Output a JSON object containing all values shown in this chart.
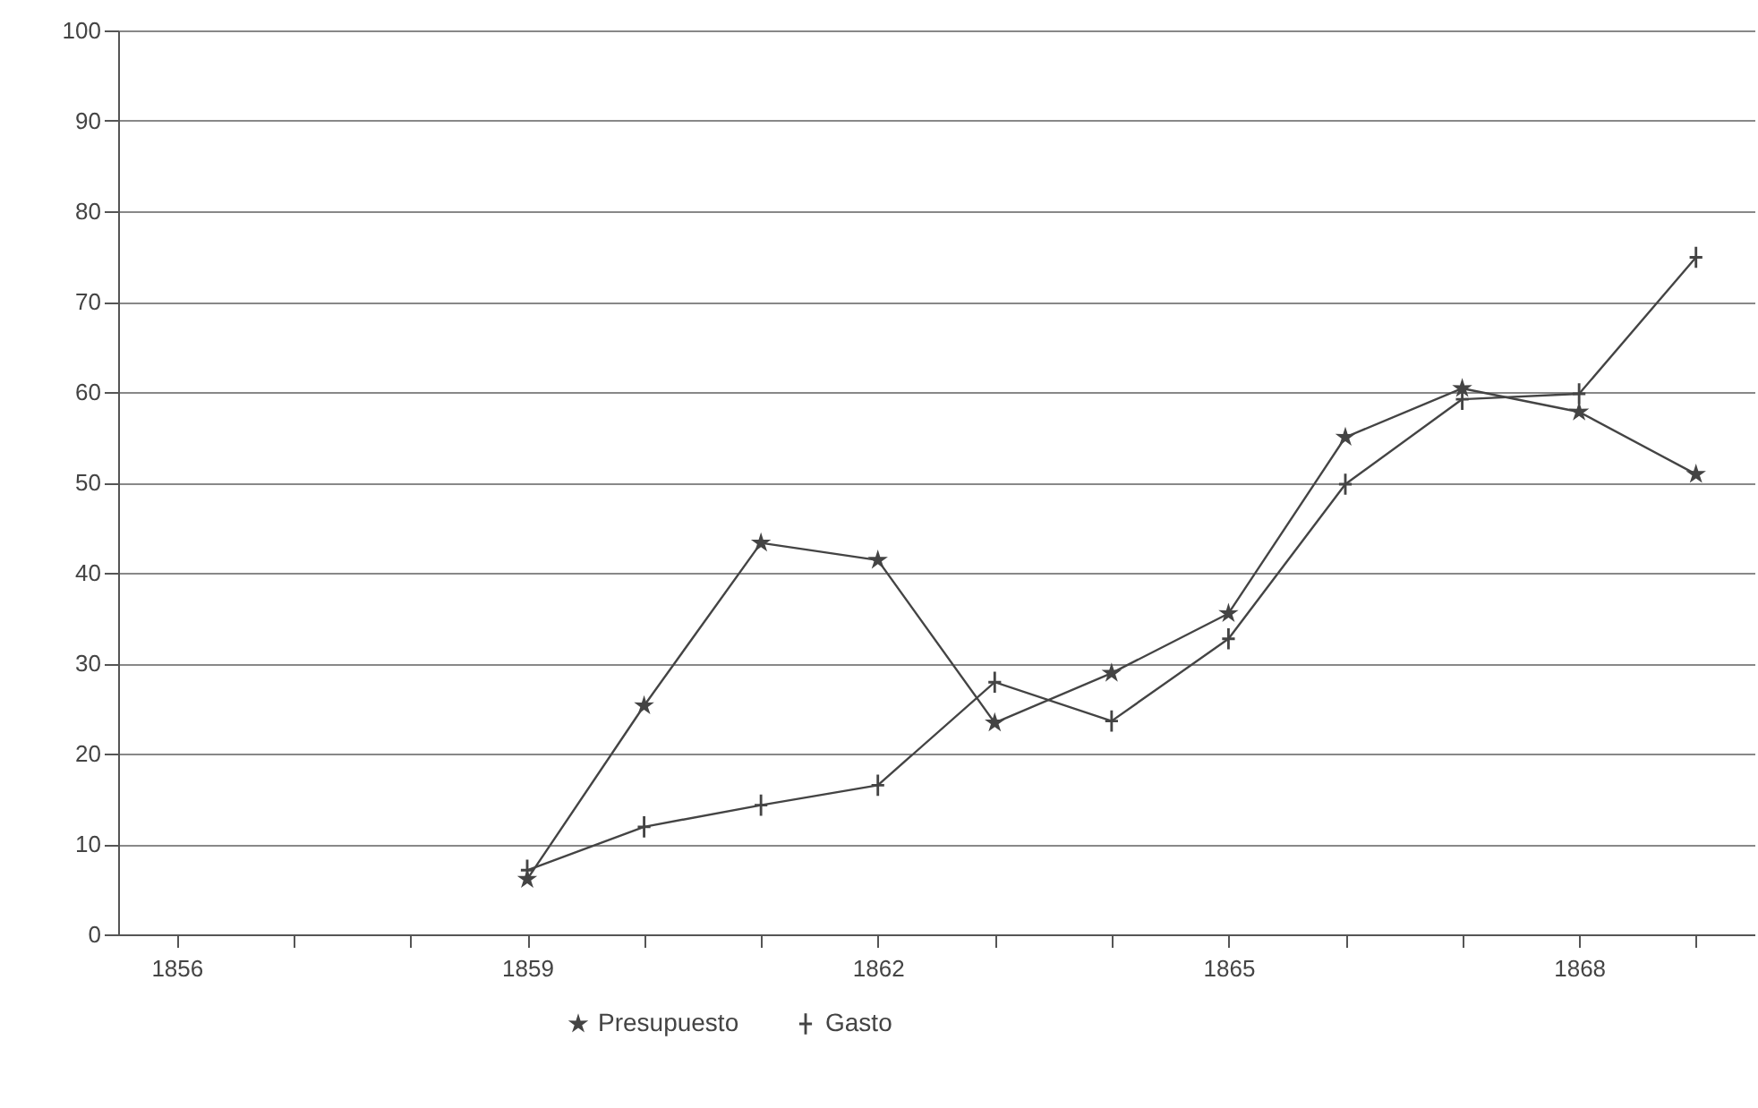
{
  "chart_data": {
    "type": "line",
    "x": [
      1859,
      1860,
      1861,
      1862,
      1863,
      1864,
      1865,
      1866,
      1867,
      1868,
      1869
    ],
    "series": [
      {
        "name": "Presupuesto",
        "color": "#444444",
        "marker": "star",
        "values": [
          6.1,
          25.3,
          43.3,
          41.4,
          23.4,
          28.9,
          35.5,
          55.0,
          60.4,
          57.8,
          50.9
        ]
      },
      {
        "name": "Gasto",
        "color": "#444444",
        "marker": "cross",
        "values": [
          7.1,
          11.9,
          14.3,
          16.5,
          27.9,
          23.6,
          32.7,
          49.8,
          59.2,
          59.8,
          74.9
        ]
      }
    ],
    "xlim": [
      1855.5,
      1869.5
    ],
    "xticks": [
      1856,
      {
        "value": 1857,
        "label": null
      },
      {
        "value": 1858,
        "label": null
      },
      1859,
      {
        "value": 1860,
        "label": null
      },
      {
        "value": 1861,
        "label": null
      },
      1862,
      {
        "value": 1863,
        "label": null
      },
      {
        "value": 1864,
        "label": null
      },
      1865,
      {
        "value": 1866,
        "label": null
      },
      {
        "value": 1867,
        "label": null
      },
      1868,
      {
        "value": 1869,
        "label": null
      }
    ],
    "ylim": [
      0,
      100
    ],
    "yticks": [
      0,
      10,
      20,
      30,
      40,
      50,
      60,
      70,
      80,
      90,
      100
    ],
    "grid": "y",
    "legend": "bottom",
    "line_style": "solid"
  }
}
